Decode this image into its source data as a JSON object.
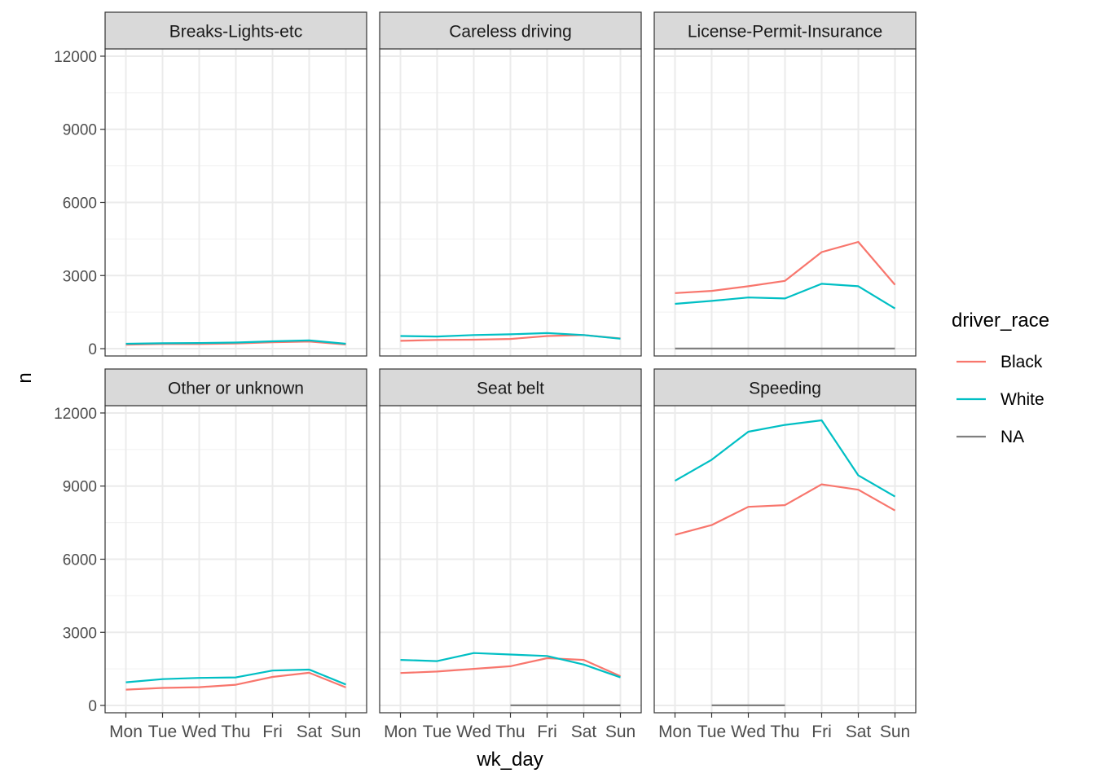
{
  "chart_data": {
    "type": "line",
    "facet_layout": "2 rows x 3 columns",
    "xlabel": "wk_day",
    "ylabel": "n",
    "x_categories": [
      "Mon",
      "Tue",
      "Wed",
      "Thu",
      "Fri",
      "Sat",
      "Sun"
    ],
    "ylim": [
      -300,
      12300
    ],
    "y_ticks": [
      0,
      3000,
      6000,
      9000,
      12000
    ],
    "y_tick_labels": [
      "0",
      "3000",
      "6000",
      "9000",
      "12000"
    ],
    "grid": true,
    "legend": {
      "title": "driver_race",
      "position": "right",
      "items": [
        {
          "label": "Black",
          "color": "#F8766D"
        },
        {
          "label": "White",
          "color": "#00BFC4"
        },
        {
          "label": "NA",
          "color": "#7F7F7F"
        }
      ]
    },
    "facets": [
      {
        "title": "Breaks-Lights-etc",
        "series": [
          {
            "name": "Black",
            "color": "#F8766D",
            "values": [
              160,
              190,
              190,
              210,
              260,
              290,
              170
            ]
          },
          {
            "name": "White",
            "color": "#00BFC4",
            "values": [
              200,
              220,
              230,
              250,
              300,
              340,
              200
            ]
          }
        ]
      },
      {
        "title": "Careless driving",
        "series": [
          {
            "name": "Black",
            "color": "#F8766D",
            "values": [
              320,
              360,
              370,
              400,
              520,
              560,
              420
            ]
          },
          {
            "name": "White",
            "color": "#00BFC4",
            "values": [
              520,
              500,
              560,
              590,
              640,
              560,
              410
            ]
          }
        ]
      },
      {
        "title": "License-Permit-Insurance",
        "series": [
          {
            "name": "Black",
            "color": "#F8766D",
            "values": [
              2280,
              2370,
              2560,
              2780,
              3960,
              4380,
              2620
            ]
          },
          {
            "name": "White",
            "color": "#00BFC4",
            "values": [
              1840,
              1960,
              2100,
              2060,
              2660,
              2560,
              1650
            ]
          },
          {
            "name": "NA",
            "color": "#7F7F7F",
            "values": [
              5,
              5,
              5,
              5,
              5,
              5,
              5
            ]
          }
        ]
      },
      {
        "title": "Other or unknown",
        "series": [
          {
            "name": "Black",
            "color": "#F8766D",
            "values": [
              650,
              720,
              750,
              850,
              1170,
              1340,
              740
            ]
          },
          {
            "name": "White",
            "color": "#00BFC4",
            "values": [
              950,
              1080,
              1130,
              1150,
              1430,
              1470,
              860
            ]
          }
        ]
      },
      {
        "title": "Seat belt",
        "series": [
          {
            "name": "Black",
            "color": "#F8766D",
            "values": [
              1330,
              1390,
              1500,
              1610,
              1940,
              1870,
              1200
            ]
          },
          {
            "name": "White",
            "color": "#00BFC4",
            "values": [
              1870,
              1820,
              2150,
              2090,
              2030,
              1680,
              1150
            ]
          },
          {
            "name": "NA",
            "color": "#7F7F7F",
            "values": [
              null,
              null,
              null,
              5,
              5,
              5,
              5
            ]
          }
        ]
      },
      {
        "title": "Speeding",
        "series": [
          {
            "name": "Black",
            "color": "#F8766D",
            "values": [
              7000,
              7400,
              8150,
              8220,
              9070,
              8850,
              8000
            ]
          },
          {
            "name": "White",
            "color": "#00BFC4",
            "values": [
              9220,
              10080,
              11230,
              11510,
              11700,
              9440,
              8570
            ]
          },
          {
            "name": "NA",
            "color": "#7F7F7F",
            "values": [
              null,
              5,
              5,
              5,
              null,
              null,
              null
            ]
          }
        ]
      }
    ]
  }
}
